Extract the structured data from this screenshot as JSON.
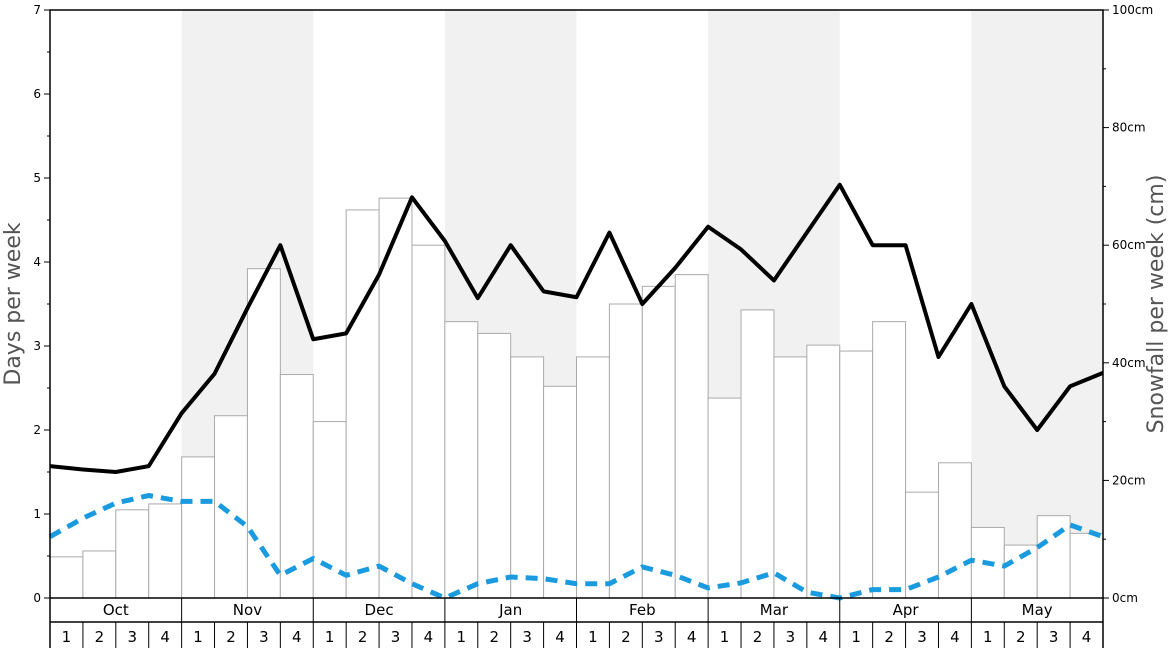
{
  "chart_data": {
    "type": "bar",
    "left_axis": {
      "label": "Days per week",
      "ylim": [
        0,
        7
      ],
      "ticks": [
        "0",
        "1",
        "2",
        "3",
        "4",
        "5",
        "6",
        "7"
      ]
    },
    "right_axis": {
      "label": "Snowfall per week (cm)",
      "ylim": [
        0,
        100
      ],
      "ticks": [
        "0cm",
        "20cm",
        "40cm",
        "60cm",
        "80cm",
        "100cm"
      ]
    },
    "months": [
      "Oct",
      "Nov",
      "Dec",
      "Jan",
      "Feb",
      "Mar",
      "Apr",
      "May"
    ],
    "weeks": [
      "1",
      "2",
      "3",
      "4"
    ],
    "shaded_months": [
      "Nov",
      "Jan",
      "Mar",
      "May"
    ],
    "series": [
      {
        "kind": "bar",
        "axis": "right",
        "color": "#ffffff",
        "stroke": "#aaaaaa",
        "values": [
          7,
          8,
          15,
          16,
          24,
          31,
          56,
          38,
          30,
          66,
          68,
          60,
          47,
          45,
          41,
          36,
          41,
          50,
          53,
          55,
          34,
          49,
          41,
          43,
          42,
          47,
          18,
          23,
          12,
          9,
          14,
          11
        ]
      },
      {
        "kind": "line",
        "axis": "left",
        "color": "#000000",
        "style": "solid",
        "values": [
          1.57,
          1.53,
          1.5,
          1.57,
          2.2,
          2.67,
          3.45,
          4.2,
          3.08,
          3.15,
          3.85,
          4.77,
          4.25,
          3.57,
          4.2,
          3.65,
          3.58,
          4.35,
          3.5,
          3.93,
          4.42,
          4.15,
          3.78,
          4.35,
          4.92,
          4.2,
          4.2,
          2.87,
          3.5,
          2.52,
          2.0,
          2.52,
          2.68
        ]
      },
      {
        "kind": "line",
        "axis": "left",
        "color": "#1a9be0",
        "style": "dashed",
        "values": [
          0.73,
          0.95,
          1.13,
          1.22,
          1.15,
          1.15,
          0.85,
          0.27,
          0.47,
          0.27,
          0.38,
          0.17,
          0.0,
          0.17,
          0.25,
          0.23,
          0.17,
          0.17,
          0.37,
          0.27,
          0.12,
          0.18,
          0.3,
          0.07,
          0.0,
          0.1,
          0.1,
          0.25,
          0.45,
          0.38,
          0.6,
          0.87,
          0.73
        ]
      }
    ]
  }
}
